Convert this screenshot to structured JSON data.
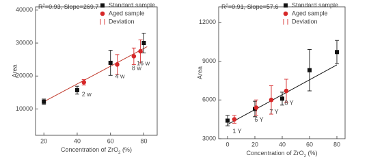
{
  "chart_data": [
    {
      "type": "scatter",
      "annotation": [
        "R",
        "2",
        "=0.93, Slope=269.7"
      ],
      "y_label": "Area",
      "x_label": [
        "Concentration of ZrO",
        "2",
        " (%)"
      ],
      "xlim": [
        15,
        88
      ],
      "xticks": [
        20,
        40,
        60,
        80
      ],
      "ylim": [
        2000,
        41000
      ],
      "yticks": [
        10000,
        20000,
        30000,
        40000
      ],
      "legend_items": [
        "Standard sample",
        "Aged sample",
        "Deviation"
      ],
      "series": [
        {
          "name": "Standard sample",
          "marker": "square",
          "color": "#111111",
          "x": [
            20,
            40,
            60,
            80
          ],
          "values": [
            12200,
            15700,
            24000,
            30000
          ],
          "errors": [
            800,
            1200,
            3800,
            3000
          ]
        },
        {
          "name": "Aged sample",
          "marker": "circle",
          "color": "#d62728",
          "x": [
            44,
            64,
            74,
            78
          ],
          "values": [
            18100,
            23500,
            26000,
            27500
          ],
          "errors": [
            800,
            3000,
            2500,
            3500
          ],
          "labels": [
            "2 w",
            "4 w",
            "8 w",
            "16 w"
          ]
        }
      ],
      "fit": {
        "color": "#c0392b",
        "x": [
          20,
          82
        ],
        "values": [
          12200,
          28900
        ]
      }
    },
    {
      "type": "scatter",
      "annotation": [
        "R",
        "2",
        "=0.91, Slope=57.6"
      ],
      "y_label": "Area",
      "x_label": [
        "Concentration of ZrO",
        "2",
        " (%)"
      ],
      "xlim": [
        -6.5,
        86
      ],
      "xticks": [
        0,
        20,
        40,
        60,
        80
      ],
      "ylim": [
        3000,
        13200
      ],
      "yticks": [
        3000,
        6000,
        9000,
        12000
      ],
      "legend_items": [
        "Standard sample",
        "Aged sample",
        "Deviation"
      ],
      "series": [
        {
          "name": "Standard sample",
          "marker": "square",
          "color": "#111111",
          "x": [
            0,
            20,
            40,
            60,
            80
          ],
          "values": [
            4400,
            5300,
            6100,
            8300,
            9700
          ],
          "errors": [
            400,
            600,
            500,
            1600,
            900
          ]
        },
        {
          "name": "Aged sample",
          "marker": "circle",
          "color": "#d62728",
          "x": [
            5,
            21,
            32,
            43
          ],
          "values": [
            4500,
            5400,
            6000,
            6700
          ],
          "errors": [
            300,
            600,
            1100,
            900
          ],
          "labels": [
            "1 Y",
            "6 Y",
            "7 Y",
            "8 Y"
          ]
        }
      ],
      "fit": {
        "color": "#111111",
        "x": [
          0,
          80
        ],
        "values": [
          4100,
          8708
        ]
      }
    }
  ]
}
